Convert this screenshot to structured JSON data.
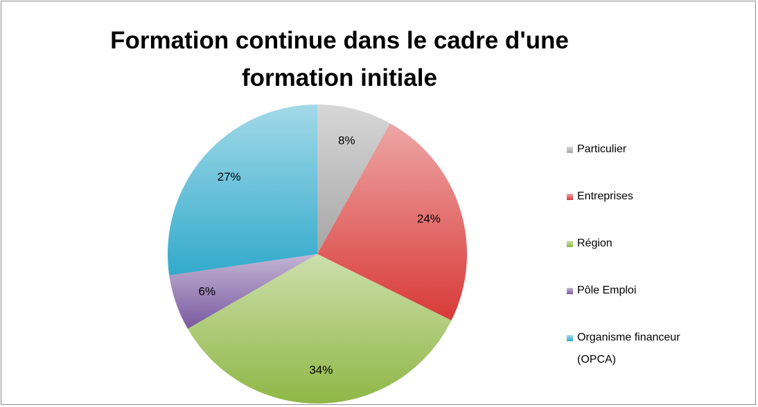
{
  "chart_data": {
    "type": "pie",
    "title": "Formation continue dans le cadre d'une formation initiale",
    "categories": [
      "Particulier",
      "Entreprises",
      "Région",
      "Pôle Emploi",
      "Organisme financeur (OPCA)"
    ],
    "values": [
      8,
      24,
      34,
      6,
      27
    ],
    "value_labels": [
      "8%",
      "24%",
      "34%",
      "6%",
      "27%"
    ],
    "colors": [
      "#a6a6a6",
      "#d83a38",
      "#8fb746",
      "#7a5aa0",
      "#32aacb"
    ],
    "legend": "right"
  }
}
